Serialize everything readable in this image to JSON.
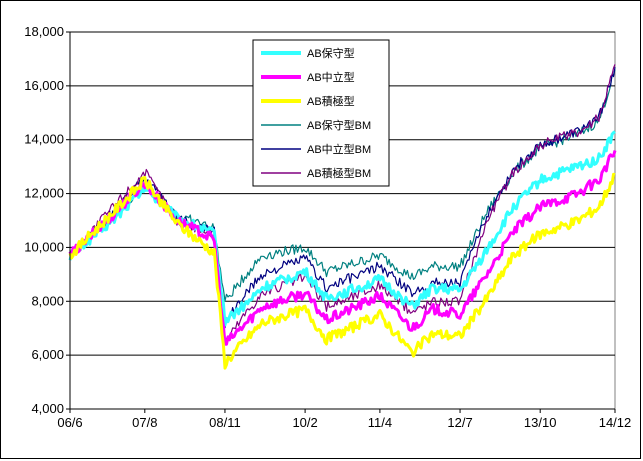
{
  "chart_data": {
    "type": "line",
    "title": "",
    "xlabel": "",
    "ylabel": "",
    "ylim": [
      4000,
      18000
    ],
    "y_ticks": [
      4000,
      6000,
      8000,
      10000,
      12000,
      14000,
      16000,
      18000
    ],
    "y_tick_labels": [
      "4,000",
      "6,000",
      "8,000",
      "10,000",
      "12,000",
      "14,000",
      "16,000",
      "18,000"
    ],
    "x_tick_labels": [
      "06/6",
      "07/8",
      "08/11",
      "10/2",
      "11/4",
      "12/7",
      "13/10",
      "14/12"
    ],
    "grid": "horizontal",
    "legend_position": "top-center",
    "colors": {
      "AB保守型": "#33ffff",
      "AB中立型": "#ff00ff",
      "AB積極型": "#ffff00",
      "AB保守型BM": "#008080",
      "AB中立型BM": "#000080",
      "AB積極型BM": "#800080"
    },
    "series": [
      {
        "name": "AB保守型",
        "x": [
          "06/6",
          "07/2",
          "07/8",
          "08/2",
          "08/9",
          "08/11",
          "09/3",
          "09/6",
          "10/2",
          "10/6",
          "11/4",
          "11/10",
          "12/2",
          "12/7",
          "12/12",
          "13/5",
          "13/10",
          "14/5",
          "14/9",
          "14/12"
        ],
        "values": [
          9700,
          11000,
          12200,
          11100,
          10500,
          7300,
          7900,
          8500,
          9100,
          8100,
          8800,
          7800,
          8500,
          8400,
          9900,
          11500,
          12500,
          13000,
          13300,
          14300
        ]
      },
      {
        "name": "AB中立型",
        "x": [
          "06/6",
          "07/2",
          "07/8",
          "08/2",
          "08/9",
          "08/11",
          "09/3",
          "09/6",
          "10/2",
          "10/6",
          "11/4",
          "11/10",
          "12/2",
          "12/7",
          "12/12",
          "13/5",
          "13/10",
          "14/5",
          "14/9",
          "14/12"
        ],
        "values": [
          9700,
          11200,
          12400,
          11000,
          10300,
          6400,
          7200,
          7800,
          8300,
          7300,
          8200,
          7000,
          7700,
          7500,
          9000,
          10600,
          11500,
          12000,
          12500,
          13600
        ]
      },
      {
        "name": "AB積極型",
        "x": [
          "06/6",
          "07/2",
          "07/8",
          "08/2",
          "08/9",
          "08/11",
          "09/3",
          "09/6",
          "10/2",
          "10/6",
          "11/4",
          "11/10",
          "12/2",
          "12/7",
          "12/12",
          "13/5",
          "13/10",
          "14/5",
          "14/9",
          "14/12"
        ],
        "values": [
          9700,
          11300,
          12500,
          10900,
          9800,
          5700,
          6600,
          7200,
          7700,
          6600,
          7500,
          6100,
          6800,
          6700,
          8100,
          9700,
          10500,
          11000,
          11500,
          12700
        ]
      },
      {
        "name": "AB保守型BM",
        "x": [
          "06/6",
          "07/2",
          "07/8",
          "08/2",
          "08/9",
          "08/11",
          "09/3",
          "09/6",
          "10/2",
          "10/6",
          "11/4",
          "11/10",
          "12/2",
          "12/7",
          "12/12",
          "13/5",
          "13/10",
          "14/5",
          "14/9",
          "14/12"
        ],
        "values": [
          9700,
          11100,
          12400,
          11200,
          10700,
          8000,
          9000,
          9700,
          10000,
          9100,
          9700,
          8900,
          9300,
          9300,
          11300,
          12800,
          13700,
          14200,
          14700,
          16600
        ]
      },
      {
        "name": "AB中立型BM",
        "x": [
          "06/6",
          "07/2",
          "07/8",
          "08/2",
          "08/9",
          "08/11",
          "09/3",
          "09/6",
          "10/2",
          "10/6",
          "11/4",
          "11/10",
          "12/2",
          "12/7",
          "12/12",
          "13/5",
          "13/10",
          "14/5",
          "14/9",
          "14/12"
        ],
        "values": [
          9700,
          11300,
          12600,
          11100,
          10600,
          7200,
          8300,
          9000,
          9600,
          8500,
          9300,
          8300,
          8700,
          8700,
          11200,
          12900,
          13800,
          14300,
          14800,
          16700
        ]
      },
      {
        "name": "AB積極型BM",
        "x": [
          "06/6",
          "07/2",
          "07/8",
          "08/2",
          "08/9",
          "08/11",
          "09/3",
          "09/6",
          "10/2",
          "10/6",
          "11/4",
          "11/10",
          "12/2",
          "12/7",
          "12/12",
          "13/5",
          "13/10",
          "14/5",
          "14/9",
          "14/12"
        ],
        "values": [
          9700,
          11500,
          12800,
          11000,
          10500,
          6500,
          7600,
          8300,
          8900,
          7800,
          8600,
          7600,
          8000,
          8000,
          11000,
          12800,
          13800,
          14300,
          14800,
          16800
        ]
      }
    ]
  }
}
